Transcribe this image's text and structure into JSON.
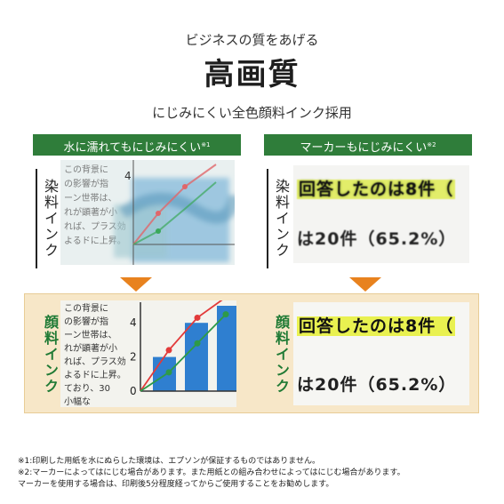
{
  "header": {
    "subtitle": "ビジネスの質をあげる",
    "title": "高画質",
    "tagline": "にじみにくい全色顔料インク採用"
  },
  "columns": {
    "left": {
      "title": "水に濡れてもにじみにくい",
      "note_ref": "※1"
    },
    "right": {
      "title": "マーカーもにじみにくい",
      "note_ref": "※2"
    }
  },
  "rows": {
    "dye_label": "染料インク",
    "pigment_label": "顔料インク"
  },
  "sample_text_lines": [
    "この背景に",
    "の影響が指",
    "ーン世帯は、",
    "れが顕著が小",
    "れば、プラス効",
    "よるドに上昇。",
    "ており、30",
    "小幅な"
  ],
  "chart": {
    "y_ticks": [
      "4",
      "2",
      "0"
    ],
    "bar_values": [
      2,
      4,
      5
    ],
    "red_series": [
      0,
      2.4,
      4.3,
      5.5
    ],
    "green_series": [
      0,
      1.1,
      2.8,
      4.5
    ]
  },
  "marker_sample": {
    "line1": "回答したのは8件（",
    "line2": "は20件（65.2%）"
  },
  "colors": {
    "header_green": "#2f7d3a",
    "arrow_orange": "#e8821e",
    "pigment_bg": "#f7e7c8",
    "marker_yellow": "#e6f032"
  },
  "footnotes": [
    "※1:印刷した用紙を水にぬらした環境は、エプソンが保証するものではありません。",
    "※2:マーカーによってはにじむ場合があります。また用紙との組み合わせによってはにじむ場合があります。",
    "マーカーを使用する場合は、印刷後5分程度経ってからご使用することをお勧めします。"
  ]
}
